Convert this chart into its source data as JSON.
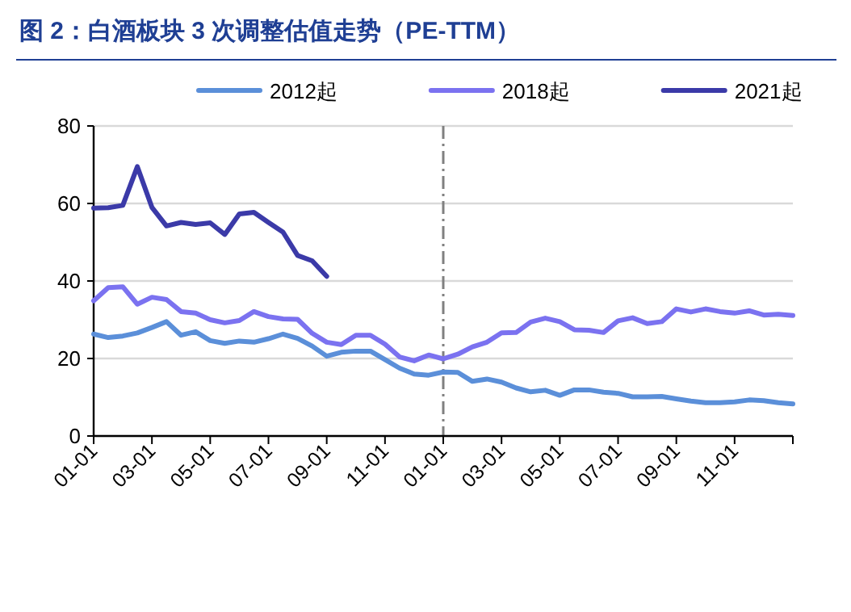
{
  "chart_data": {
    "type": "line",
    "title": "图 2：白酒板块 3 次调整估值走势（PE-TTM）",
    "categories": [
      "01-01",
      null,
      null,
      null,
      "03-01",
      null,
      null,
      null,
      "05-01",
      null,
      null,
      null,
      "07-01",
      null,
      null,
      null,
      "09-01",
      null,
      null,
      null,
      "11-01",
      null,
      null,
      null,
      "01-01",
      null,
      null,
      null,
      "03-01",
      null,
      null,
      null,
      "05-01",
      null,
      null,
      null,
      "07-01",
      null,
      null,
      null,
      "09-01",
      null,
      null,
      null,
      "11-01",
      null,
      null,
      null,
      null
    ],
    "ylim": [
      0,
      80
    ],
    "yticks": [
      0,
      20,
      40,
      60,
      80
    ],
    "grid": "y",
    "legend": "top",
    "series": [
      {
        "name": "2012起",
        "color": "#5b8fd9",
        "values": [
          26.3,
          25.4,
          25.8,
          26.6,
          28,
          29.5,
          26,
          26.9,
          24.6,
          23.9,
          24.5,
          24.2,
          25.1,
          26.3,
          25.2,
          23.2,
          20.6,
          21.6,
          21.9,
          21.9,
          19.7,
          17.5,
          16,
          15.7,
          16.5,
          16.4,
          14.1,
          14.7,
          13.9,
          12.4,
          11.4,
          11.8,
          10.5,
          11.9,
          11.9,
          11.3,
          11,
          10.1,
          10.1,
          10.2,
          9.6,
          9,
          8.6,
          8.6,
          8.8,
          9.3,
          9.1,
          8.6,
          8.3
        ]
      },
      {
        "name": "2018起",
        "color": "#7b72f0",
        "values": [
          34.9,
          38.3,
          38.5,
          34,
          35.8,
          35.2,
          32.1,
          31.7,
          30,
          29.2,
          29.8,
          32.1,
          30.8,
          30.2,
          30.1,
          26.5,
          24.2,
          23.6,
          26,
          26,
          23.7,
          20.4,
          19.4,
          20.9,
          19.9,
          21.1,
          23,
          24.2,
          26.6,
          26.7,
          29.4,
          30.4,
          29.5,
          27.4,
          27.3,
          26.7,
          29.7,
          30.5,
          29,
          29.5,
          32.8,
          32,
          32.8,
          32.1,
          31.7,
          32.3,
          31.2,
          31.4,
          31.1
        ]
      },
      {
        "name": "2021起",
        "color": "#3b3aa8",
        "values": [
          58.8,
          58.9,
          59.5,
          69.5,
          59,
          54.2,
          55.1,
          54.6,
          55,
          52,
          57.3,
          57.7,
          55.1,
          52.6,
          46.6,
          45.2,
          41.2,
          null,
          null,
          null,
          null,
          null,
          null,
          null,
          null,
          null,
          null,
          null,
          null,
          null,
          null,
          null,
          null,
          null,
          null,
          null,
          null,
          null,
          null,
          null,
          null,
          null,
          null,
          null,
          null,
          null,
          null,
          null,
          null
        ]
      }
    ]
  }
}
